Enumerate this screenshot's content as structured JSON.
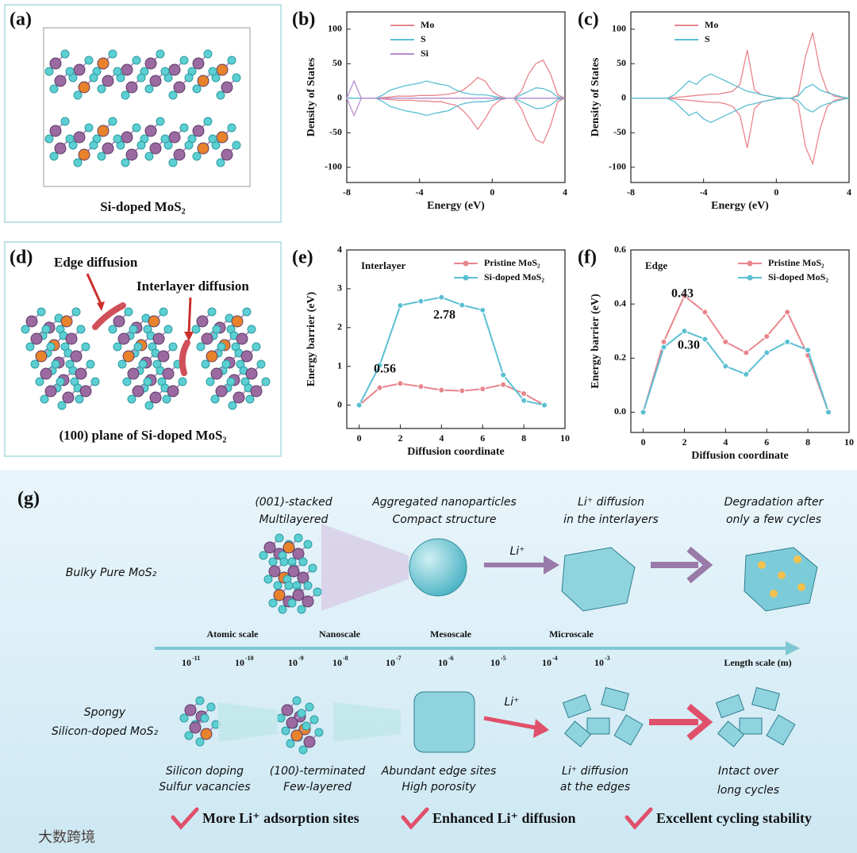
{
  "panels": [
    "(a)",
    "(b)",
    "(c)",
    "(d)",
    "(e)",
    "(f)",
    "(g)"
  ],
  "captions": {
    "a": "Si-doped MoS₂",
    "d_edge": "Edge diffusion",
    "d_inter": "Interlayer diffusion",
    "d": "(100) plane of Si-doped MoS₂"
  },
  "chart_data": [
    {
      "type": "line",
      "xlabel": "Energy (eV)",
      "ylabel": "Density of States",
      "xlim": [
        -8,
        4
      ],
      "xticks": [
        -8,
        -4,
        0,
        4
      ],
      "ylim": [
        -122,
        125
      ],
      "yticks": [
        -100,
        -50,
        0,
        50,
        100
      ],
      "legend": "upper center",
      "x": [
        -8,
        -7.6,
        -7.2,
        -6.8,
        -6.4,
        -6,
        -5.6,
        -5.2,
        -4.8,
        -4.4,
        -4,
        -3.6,
        -3.2,
        -2.8,
        -2.4,
        -2,
        -1.6,
        -1.2,
        -0.8,
        -0.4,
        0,
        0.4,
        0.8,
        1.2,
        1.6,
        2,
        2.4,
        2.8,
        3.2,
        3.6,
        4
      ],
      "series": [
        {
          "name": "Mo",
          "color": "#e8858c",
          "values": [
            0,
            0,
            0,
            0,
            0,
            1,
            2,
            3,
            3,
            3,
            4,
            4,
            4,
            5,
            6,
            8,
            12,
            20,
            30,
            25,
            10,
            3,
            0,
            0,
            10,
            35,
            50,
            55,
            35,
            5,
            0
          ],
          "down": [
            0,
            0,
            0,
            0,
            0,
            -1,
            -2,
            -3,
            -3,
            -3,
            -4,
            -4,
            -5,
            -5,
            -8,
            -10,
            -18,
            -30,
            -45,
            -30,
            -12,
            -3,
            0,
            0,
            -15,
            -40,
            -60,
            -65,
            -40,
            -5,
            0
          ]
        },
        {
          "name": "S",
          "color": "#5bbfd3",
          "values": [
            0,
            0,
            0,
            0,
            0,
            5,
            12,
            15,
            18,
            20,
            22,
            25,
            22,
            20,
            18,
            12,
            8,
            6,
            5,
            5,
            3,
            1,
            0,
            0,
            5,
            10,
            15,
            14,
            10,
            2,
            0
          ],
          "down": [
            0,
            0,
            0,
            0,
            0,
            -5,
            -12,
            -15,
            -18,
            -20,
            -22,
            -25,
            -22,
            -20,
            -18,
            -12,
            -8,
            -6,
            -5,
            -5,
            -3,
            -1,
            0,
            0,
            -5,
            -10,
            -15,
            -14,
            -10,
            -2,
            0
          ]
        },
        {
          "name": "Si",
          "color": "#b88ccc",
          "values": [
            0,
            25,
            0,
            0,
            0,
            0,
            0,
            0,
            0,
            0,
            0,
            0,
            0,
            0,
            0,
            0,
            0,
            0,
            0,
            0,
            0,
            0,
            0,
            0,
            0,
            0,
            0,
            0,
            0,
            0,
            0
          ],
          "down": [
            0,
            -25,
            0,
            0,
            0,
            0,
            0,
            0,
            0,
            0,
            0,
            0,
            0,
            0,
            0,
            0,
            0,
            0,
            0,
            0,
            0,
            0,
            0,
            0,
            0,
            0,
            0,
            0,
            0,
            0,
            0
          ]
        }
      ]
    },
    {
      "type": "line",
      "xlabel": "Energy (eV)",
      "ylabel": "Density of States",
      "xlim": [
        -8,
        4
      ],
      "xticks": [
        -8,
        -4,
        0,
        4
      ],
      "ylim": [
        -122,
        125
      ],
      "yticks": [
        -100,
        -50,
        0,
        50,
        100
      ],
      "legend": "upper center",
      "x": [
        -8,
        -7.6,
        -7.2,
        -6.8,
        -6.4,
        -6,
        -5.6,
        -5.2,
        -4.8,
        -4.4,
        -4,
        -3.6,
        -3.2,
        -2.8,
        -2.4,
        -2,
        -1.6,
        -1.2,
        -0.8,
        -0.4,
        0,
        0.4,
        0.8,
        1.2,
        1.6,
        2,
        2.4,
        2.8,
        3.2,
        3.6,
        4
      ],
      "series": [
        {
          "name": "Mo",
          "color": "#e8858c",
          "values": [
            0,
            0,
            0,
            0,
            0,
            0,
            1,
            2,
            3,
            4,
            5,
            6,
            6,
            8,
            10,
            20,
            70,
            12,
            5,
            3,
            1,
            0,
            0,
            5,
            60,
            95,
            40,
            10,
            3,
            1,
            0
          ],
          "down": [
            0,
            0,
            0,
            0,
            0,
            0,
            -1,
            -2,
            -3,
            -4,
            -5,
            -6,
            -6,
            -8,
            -12,
            -25,
            -72,
            -15,
            -5,
            -3,
            -1,
            0,
            0,
            -8,
            -70,
            -95,
            -45,
            -12,
            -3,
            -1,
            0
          ]
        },
        {
          "name": "S",
          "color": "#5bbfd3",
          "values": [
            0,
            0,
            0,
            0,
            0,
            0,
            5,
            15,
            25,
            20,
            30,
            35,
            30,
            25,
            20,
            15,
            10,
            8,
            5,
            3,
            1,
            0,
            0,
            3,
            15,
            20,
            12,
            8,
            5,
            2,
            0
          ],
          "down": [
            0,
            0,
            0,
            0,
            0,
            0,
            -5,
            -15,
            -25,
            -20,
            -30,
            -35,
            -30,
            -25,
            -20,
            -15,
            -10,
            -8,
            -5,
            -3,
            -1,
            0,
            0,
            -3,
            -15,
            -20,
            -12,
            -8,
            -5,
            -2,
            0
          ]
        }
      ]
    },
    {
      "type": "line",
      "markers": true,
      "xlabel": "Diffusion coordinate",
      "ylabel": "Energy barrier (eV)",
      "xlim": [
        -0.6,
        10
      ],
      "xticks": [
        0,
        2,
        4,
        6,
        8,
        10
      ],
      "ylim": [
        -0.6,
        4
      ],
      "yticks": [
        0,
        1,
        2,
        3,
        4
      ],
      "legend": "upper right",
      "annotations": [
        "Interlayer",
        "2.78",
        "0.56"
      ],
      "x": [
        0,
        1,
        2,
        3,
        4,
        5,
        6,
        7,
        8,
        9
      ],
      "series": [
        {
          "name": "Pristine MoS₂",
          "color": "#e8858c",
          "values": [
            0,
            0.45,
            0.56,
            0.48,
            0.39,
            0.37,
            0.42,
            0.53,
            0.3,
            0
          ]
        },
        {
          "name": "Si-doped MoS₂",
          "color": "#5bbfd3",
          "values": [
            0,
            1.03,
            2.57,
            2.68,
            2.78,
            2.58,
            2.45,
            0.78,
            0.12,
            0
          ]
        }
      ]
    },
    {
      "type": "line",
      "markers": true,
      "xlabel": "Diffusion coordinate",
      "ylabel": "Energy barrier (eV)",
      "xlim": [
        -0.6,
        10
      ],
      "xticks": [
        0,
        2,
        4,
        6,
        8,
        10
      ],
      "ylim": [
        -0.075,
        0.6
      ],
      "yticks": [
        {
          "value": 0,
          "label": "0.0"
        },
        0.2,
        0.4,
        0.6
      ],
      "legend": "upper right",
      "annotations": [
        "Edge",
        "0.43",
        "0.30"
      ],
      "x": [
        0,
        1,
        2,
        3,
        4,
        5,
        6,
        7,
        8,
        9
      ],
      "series": [
        {
          "name": "Pristine MoS₂",
          "color": "#e8858c",
          "values": [
            0,
            0.26,
            0.43,
            0.37,
            0.26,
            0.22,
            0.28,
            0.37,
            0.21,
            0
          ]
        },
        {
          "name": "Si-doped MoS₂",
          "color": "#5bbfd3",
          "values": [
            0,
            0.24,
            0.3,
            0.27,
            0.17,
            0.14,
            0.22,
            0.26,
            0.23,
            0
          ]
        }
      ]
    }
  ],
  "g": {
    "top": [
      [
        "(001)-stacked",
        "Multilayered"
      ],
      [
        "Aggregated nanoparticles",
        "Compact structure"
      ],
      [
        "Li⁺ diffusion",
        "in the interlayers"
      ],
      [
        "Degradation after",
        "only a few cycles"
      ]
    ],
    "bulky": "Bulky Pure MoS₂",
    "li": "Li⁺",
    "scales": [
      "Atomic scale",
      "Nanoscale",
      "Mesoscale",
      "Microscale"
    ],
    "exponents": [
      "-11",
      "-10",
      "-9",
      "-8",
      "-7",
      "-6",
      "-5",
      "-4",
      "-3"
    ],
    "base": "10",
    "axis": "Length scale (m)",
    "spongy": [
      "Spongy",
      "Silicon-doped MoS₂"
    ],
    "bottom": [
      [
        "Silicon doping",
        "Sulfur vacancies"
      ],
      [
        "(100)-terminated",
        "Few-layered"
      ],
      [
        "Abundant edge sites",
        "High porosity"
      ],
      [
        "Li⁺ diffusion",
        "at the edges"
      ],
      [
        "Intact over",
        "long cycles"
      ]
    ],
    "checks": [
      "More Li⁺ adsorption sites",
      "Enhanced Li⁺ diffusion",
      "Excellent cycling stability"
    ]
  },
  "watermark": "大数跨境"
}
